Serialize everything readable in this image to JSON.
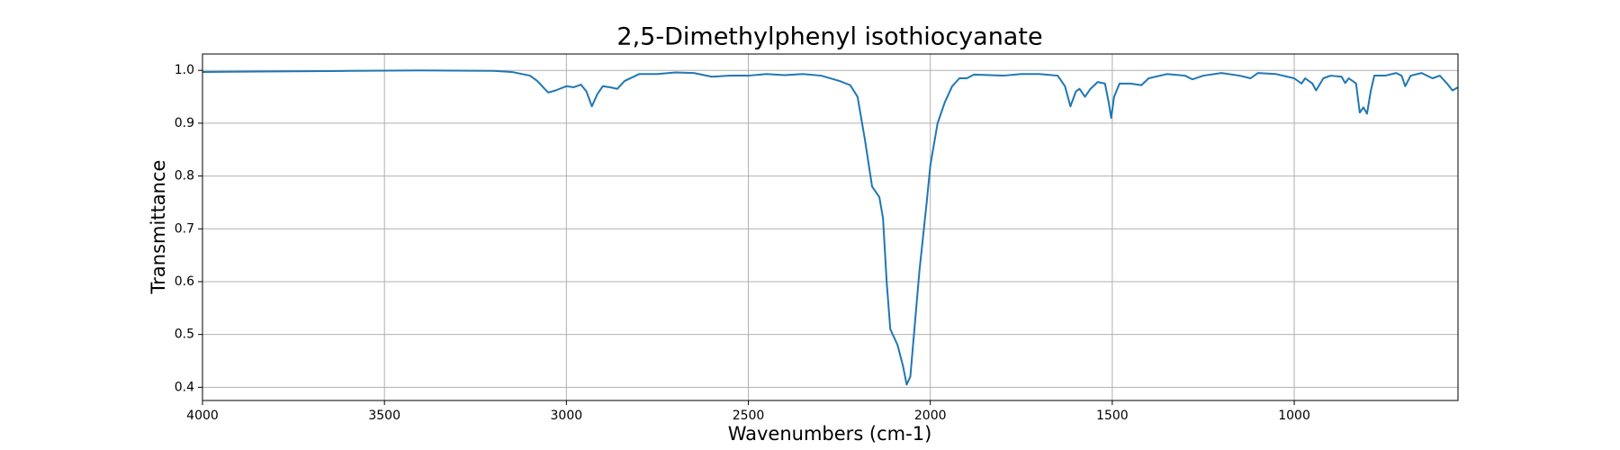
{
  "chart_data": {
    "type": "line",
    "title": "2,5-Dimethylphenyl isothiocyanate",
    "xlabel": "Wavenumbers (cm-1)",
    "ylabel": "Transmittance",
    "color": "#1f77b4",
    "grid": true,
    "xlim": [
      4000,
      550
    ],
    "ylim": [
      0.375,
      1.031
    ],
    "xticks": [
      4000,
      3500,
      3000,
      2500,
      2000,
      1500,
      1000
    ],
    "yticks": [
      0.4,
      0.5,
      0.6,
      0.7,
      0.8,
      0.9,
      {
        "value": 1,
        "label": "1.0"
      }
    ],
    "x": [
      4000,
      3800,
      3600,
      3400,
      3200,
      3150,
      3100,
      3080,
      3060,
      3050,
      3030,
      3000,
      2980,
      2960,
      2945,
      2930,
      2915,
      2900,
      2880,
      2860,
      2840,
      2800,
      2750,
      2700,
      2650,
      2600,
      2550,
      2500,
      2450,
      2400,
      2350,
      2300,
      2250,
      2220,
      2200,
      2180,
      2160,
      2140,
      2130,
      2120,
      2110,
      2090,
      2075,
      2065,
      2055,
      2045,
      2030,
      2010,
      2000,
      1980,
      1960,
      1940,
      1920,
      1900,
      1880,
      1800,
      1750,
      1700,
      1650,
      1630,
      1615,
      1600,
      1590,
      1575,
      1560,
      1540,
      1520,
      1510,
      1503,
      1495,
      1480,
      1450,
      1420,
      1400,
      1350,
      1300,
      1280,
      1250,
      1200,
      1150,
      1120,
      1100,
      1050,
      1000,
      980,
      970,
      950,
      940,
      920,
      900,
      870,
      860,
      850,
      830,
      820,
      810,
      800,
      790,
      780,
      750,
      720,
      705,
      695,
      680,
      650,
      620,
      600,
      580,
      565,
      550
    ],
    "values": [
      0.997,
      0.998,
      0.999,
      1.0,
      0.999,
      0.997,
      0.99,
      0.98,
      0.965,
      0.958,
      0.962,
      0.97,
      0.968,
      0.973,
      0.96,
      0.932,
      0.955,
      0.97,
      0.968,
      0.965,
      0.98,
      0.993,
      0.993,
      0.996,
      0.995,
      0.988,
      0.99,
      0.99,
      0.993,
      0.991,
      0.993,
      0.99,
      0.98,
      0.972,
      0.95,
      0.87,
      0.78,
      0.76,
      0.72,
      0.6,
      0.51,
      0.48,
      0.44,
      0.405,
      0.42,
      0.5,
      0.62,
      0.75,
      0.82,
      0.9,
      0.94,
      0.97,
      0.985,
      0.985,
      0.992,
      0.99,
      0.993,
      0.993,
      0.99,
      0.97,
      0.932,
      0.96,
      0.965,
      0.95,
      0.965,
      0.978,
      0.975,
      0.94,
      0.91,
      0.95,
      0.975,
      0.975,
      0.972,
      0.985,
      0.993,
      0.99,
      0.983,
      0.99,
      0.995,
      0.99,
      0.985,
      0.995,
      0.993,
      0.985,
      0.975,
      0.985,
      0.975,
      0.962,
      0.985,
      0.99,
      0.988,
      0.976,
      0.985,
      0.975,
      0.92,
      0.93,
      0.918,
      0.96,
      0.99,
      0.99,
      0.995,
      0.99,
      0.97,
      0.99,
      0.995,
      0.985,
      0.99,
      0.975,
      0.962,
      0.968
    ]
  }
}
